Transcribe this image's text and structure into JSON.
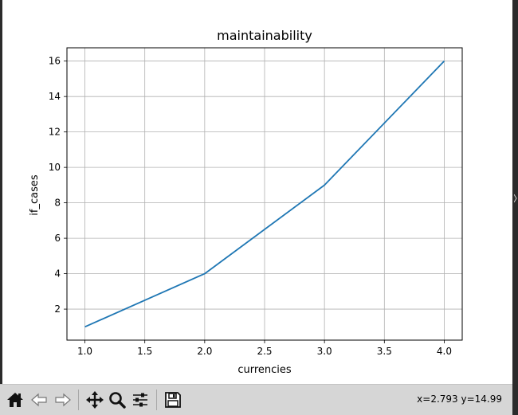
{
  "window": {
    "background": "#ffffff"
  },
  "chart_data": {
    "type": "line",
    "title": "maintainability",
    "xlabel": "currencies",
    "ylabel": "if_cases",
    "x": [
      1,
      2,
      3,
      4
    ],
    "series": [
      {
        "values": [
          1,
          4,
          9,
          16
        ],
        "color": "#1f77b4"
      }
    ],
    "xlim": [
      0.85,
      4.15
    ],
    "ylim": [
      0.25,
      16.75
    ],
    "xticks": [
      1.0,
      1.5,
      2.0,
      2.5,
      3.0,
      3.5,
      4.0
    ],
    "xtick_labels": [
      "1.0",
      "1.5",
      "2.0",
      "2.5",
      "3.0",
      "3.5",
      "4.0"
    ],
    "yticks": [
      2,
      4,
      6,
      8,
      10,
      12,
      14,
      16
    ],
    "ytick_labels": [
      "2",
      "4",
      "6",
      "8",
      "10",
      "12",
      "14",
      "16"
    ],
    "grid": true
  },
  "toolbar": {
    "buttons": [
      {
        "name": "home-button",
        "icon": "home-icon"
      },
      {
        "name": "back-button",
        "icon": "back-arrow-icon"
      },
      {
        "name": "forward-button",
        "icon": "forward-arrow-icon"
      },
      {
        "name": "pan-button",
        "icon": "move-icon"
      },
      {
        "name": "zoom-button",
        "icon": "magnifier-icon"
      },
      {
        "name": "configure-subplots-button",
        "icon": "sliders-icon"
      },
      {
        "name": "save-button",
        "icon": "floppy-disk-icon"
      }
    ],
    "coordinates": "x=2.793 y=14.99"
  }
}
